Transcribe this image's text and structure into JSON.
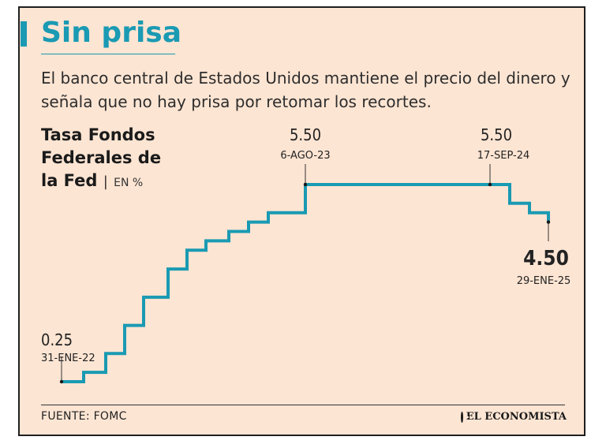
{
  "title": "Sin prisa",
  "subtitle": "El banco central de Estados Unidos mantiene el precio del dinero y señala que no hay prisa por retomar los recortes.",
  "metric": {
    "name_l1": "Tasa Fondos",
    "name_l2": "Federales de",
    "name_l3": "la Fed",
    "separator": "|",
    "unit": "EN %"
  },
  "source": "FUENTE: FOMC",
  "brand": "EL ECONOMISTA",
  "colors": {
    "line": "#1a9ab3",
    "background": "#fde5d3",
    "title": "#1a9ab3"
  },
  "chart_data": {
    "type": "line",
    "step": true,
    "x": [
      "31-ENE-22",
      "",
      "",
      "",
      "",
      "",
      "",
      "",
      "",
      "",
      "",
      "6-AGO-23",
      "17-SEP-24",
      "",
      "",
      "29-ENE-25"
    ],
    "y": [
      0.25,
      0.5,
      1.0,
      1.75,
      2.5,
      3.25,
      3.75,
      4.0,
      4.25,
      4.5,
      4.75,
      5.5,
      5.5,
      5.0,
      4.75,
      4.5
    ],
    "annotations": [
      {
        "index": 0,
        "value": "0.25",
        "date": "31-ENE-22"
      },
      {
        "index": 11,
        "value": "5.50",
        "date": "6-AGO-23"
      },
      {
        "index": 12,
        "value": "5.50",
        "date": "17-SEP-24"
      },
      {
        "index": 15,
        "value": "4.50",
        "date": "29-ENE-25"
      }
    ],
    "ylim": [
      0.25,
      5.5
    ]
  }
}
